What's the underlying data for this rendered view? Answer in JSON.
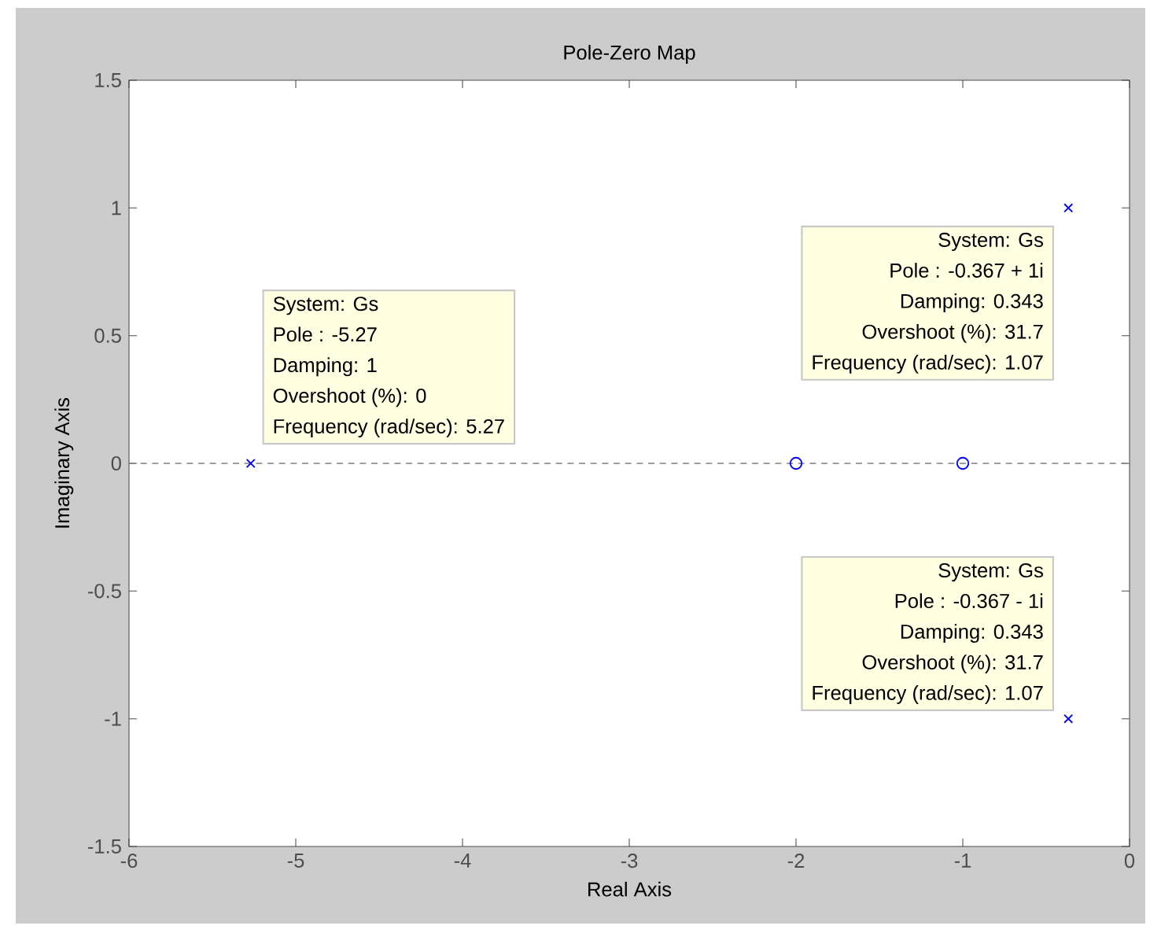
{
  "chart_data": {
    "type": "scatter",
    "title": "Pole-Zero Map",
    "xlabel": "Real Axis",
    "ylabel": "Imaginary Axis",
    "series": [
      {
        "marker": "cross",
        "color": "#0000ff",
        "x": [
          -5.27,
          -0.367,
          -0.367
        ],
        "values": [
          0,
          1,
          -1
        ]
      },
      {
        "marker": "circle",
        "color": "#0000ff",
        "x": [
          -2,
          -1
        ],
        "values": [
          0,
          0
        ]
      }
    ],
    "xlim": [
      -6,
      0
    ],
    "ylim": [
      -1.5,
      1.5
    ],
    "xticks": [
      -6,
      -5,
      -4,
      -3,
      -2,
      -1,
      0
    ],
    "yticks": [
      -1.5,
      -1,
      -0.5,
      0,
      0.5,
      1,
      1.5
    ],
    "grid": false,
    "ref_lines": [
      {
        "axis": "y",
        "value": 0,
        "color": "#808080",
        "line_style": "dashed"
      }
    ],
    "annotations": [
      "System: Gs",
      "Pole : -5.27",
      "Damping: 1",
      "Overshoot (%): 0",
      "Frequency (rad/sec): 5.27",
      "System: Gs",
      "Pole : -0.367 + 1i",
      "Damping: 0.343",
      "Overshoot (%): 31.7",
      "Frequency (rad/sec): 1.07",
      "System: Gs",
      "Pole : -0.367 - 1i",
      "Damping: 0.343",
      "Overshoot (%): 31.7",
      "Frequency (rad/sec): 1.07"
    ]
  }
}
